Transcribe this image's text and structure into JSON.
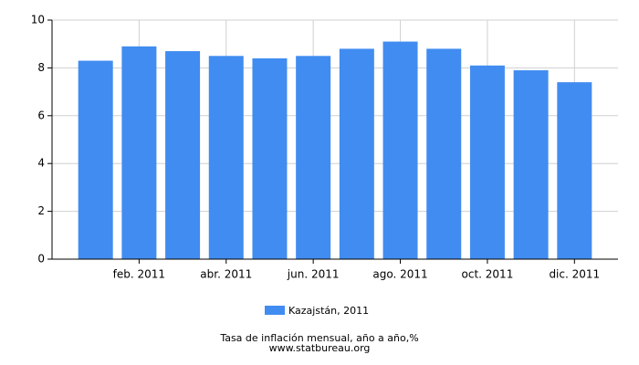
{
  "chart_data": {
    "type": "bar",
    "categories": [
      null,
      "feb. 2011",
      null,
      "abr. 2011",
      null,
      "jun. 2011",
      null,
      "ago. 2011",
      null,
      "oct. 2011",
      null,
      "dic. 2011"
    ],
    "series": [
      {
        "name": "Kazajstán, 2011",
        "color": "#418cf0",
        "values": [
          8.3,
          8.9,
          8.7,
          8.5,
          8.4,
          8.5,
          8.8,
          9.1,
          8.8,
          8.1,
          7.9,
          7.4
        ]
      }
    ],
    "ylim": [
      0,
      10
    ],
    "yticks": [
      0,
      2,
      4,
      6,
      8,
      10
    ],
    "grid": true,
    "caption": "Tasa de inflación mensual, año a año,%",
    "source": "www.statbureau.org"
  }
}
